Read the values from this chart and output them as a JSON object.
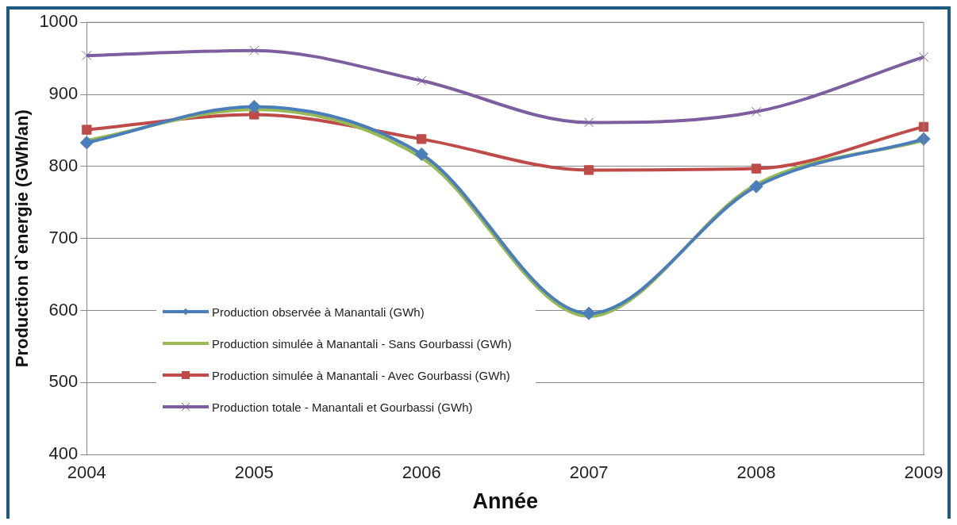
{
  "chart_data": {
    "type": "line",
    "xlabel": "Année",
    "ylabel": "Production d`energie (GWh/an)",
    "categories": [
      "2004",
      "2005",
      "2006",
      "2007",
      "2008",
      "2009"
    ],
    "series": [
      {
        "name": "Production observée à Manantali (GWh)",
        "color": "#4a7ebb",
        "marker": "diamond",
        "values": [
          833,
          883,
          817,
          596,
          772,
          838
        ]
      },
      {
        "name": "Production simulée à Manantali - Sans Gourbassi (GWh)",
        "color": "#98b954",
        "marker": "none",
        "values": [
          836,
          879,
          812,
          592,
          775,
          836
        ]
      },
      {
        "name": "Production simulée à Manantali - Avec Gourbassi (GWh)",
        "color": "#be4b48",
        "marker": "square",
        "values": [
          851,
          872,
          838,
          795,
          797,
          855
        ]
      },
      {
        "name": "Production totale - Manantali et Gourbassi (GWh)",
        "color": "#7d5fa0",
        "marker": "cross",
        "values": [
          954,
          961,
          919,
          861,
          876,
          952
        ]
      }
    ],
    "ylim": [
      400,
      1000
    ],
    "yticks": [
      400,
      500,
      600,
      700,
      800,
      900,
      1000
    ],
    "grid": "y",
    "legend": "bottom left",
    "line_style": "solid"
  }
}
